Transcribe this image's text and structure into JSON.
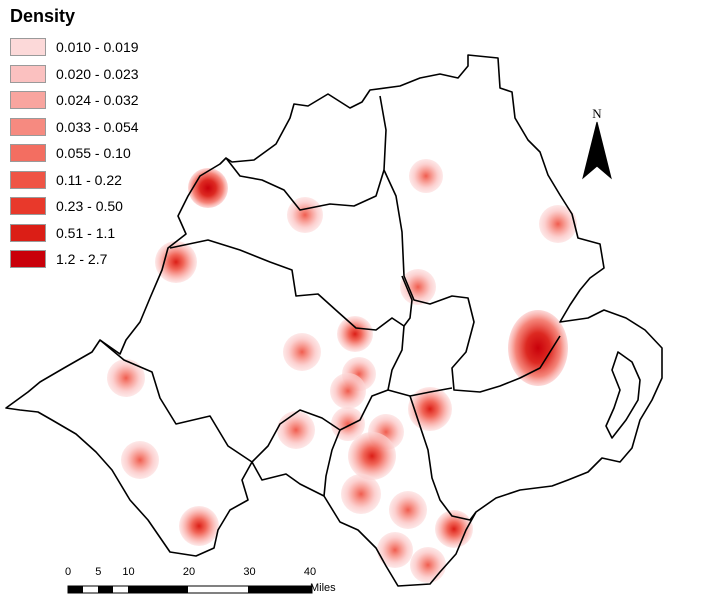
{
  "legend": {
    "title": "Density",
    "classes": [
      {
        "label": "0.010 - 0.019",
        "color": "#fcd9d9"
      },
      {
        "label": "0.020 - 0.023",
        "color": "#fbc1c0"
      },
      {
        "label": "0.024 - 0.032",
        "color": "#f9a59f"
      },
      {
        "label": "0.033 - 0.054",
        "color": "#f68a80"
      },
      {
        "label": "0.055 - 0.10",
        "color": "#f36e61"
      },
      {
        "label": "0.11 - 0.22",
        "color": "#ef5445"
      },
      {
        "label": "0.23 - 0.50",
        "color": "#e8392b"
      },
      {
        "label": "0.51 - 1.1",
        "color": "#db1e16"
      },
      {
        "label": "1.2 - 2.7",
        "color": "#c9000a"
      }
    ]
  },
  "north_arrow": {
    "label": "N",
    "icon": "north-arrow-icon"
  },
  "scale_bar": {
    "ticks": [
      "0",
      "5",
      "10",
      "20",
      "30",
      "40"
    ],
    "unit": "Miles"
  },
  "map_style": {
    "boundary_color": "#000000",
    "background": "#ffffff"
  }
}
